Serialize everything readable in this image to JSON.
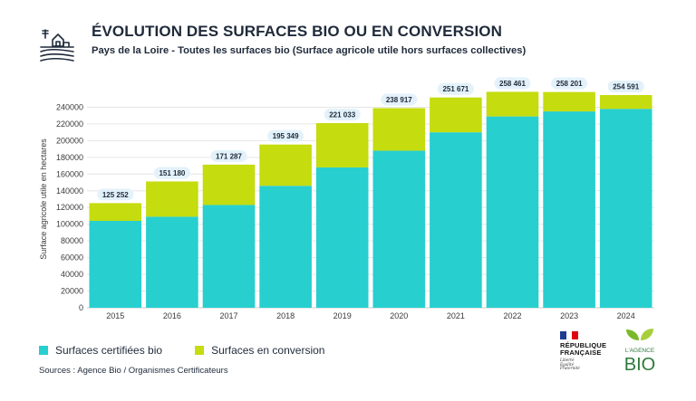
{
  "header": {
    "title": "ÉVOLUTION DES SURFACES BIO OU EN CONVERSION",
    "subtitle": "Pays de la Loire - Toutes les surfaces bio (Surface agricole utile hors surfaces collectives)"
  },
  "colors": {
    "certified": "#27cfcf",
    "conversion": "#c5dc0f",
    "label_bg": "#e3f2fa",
    "grid": "#e6e6e6",
    "axis_text": "#3a3a3a"
  },
  "chart_data": {
    "type": "bar",
    "stacked": true,
    "title": "ÉVOLUTION DES SURFACES BIO OU EN CONVERSION",
    "ylabel": "Surface agricole utile en hectares",
    "xlabel": "",
    "categories": [
      "2015",
      "2016",
      "2017",
      "2018",
      "2019",
      "2020",
      "2021",
      "2022",
      "2023",
      "2024"
    ],
    "series": [
      {
        "name": "Surfaces certifiées bio",
        "values": [
          104000,
          109000,
          123000,
          146000,
          168000,
          188000,
          210000,
          229000,
          235000,
          238000
        ]
      },
      {
        "name": "Surfaces en conversion",
        "values": [
          21252,
          42180,
          48287,
          49349,
          53033,
          50917,
          41671,
          29461,
          23201,
          16591
        ]
      }
    ],
    "totals": [
      125252,
      151180,
      171287,
      195349,
      221033,
      238917,
      251671,
      258461,
      258201,
      254591
    ],
    "total_labels": [
      "125 252",
      "151 180",
      "171 287",
      "195 349",
      "221 033",
      "238 917",
      "251 671",
      "258 461",
      "258 201",
      "254 591"
    ],
    "ylim": [
      0,
      260000
    ],
    "yticks": [
      0,
      20000,
      40000,
      60000,
      80000,
      100000,
      120000,
      140000,
      160000,
      180000,
      200000,
      220000,
      240000
    ],
    "grid": true
  },
  "legend": {
    "certified_label": "Surfaces certifiées bio",
    "conversion_label": "Surfaces en conversion"
  },
  "footer": {
    "sources": "Sources : Agence Bio / Organismes Certificateurs"
  },
  "logos": {
    "rf_line1": "RÉPUBLIQUE",
    "rf_line2": "FRANÇAISE",
    "rf_motto1": "Liberté",
    "rf_motto2": "Égalité",
    "rf_motto3": "Fraternité",
    "ab_top": "L'AGENCE",
    "ab_bottom": "BIO"
  }
}
